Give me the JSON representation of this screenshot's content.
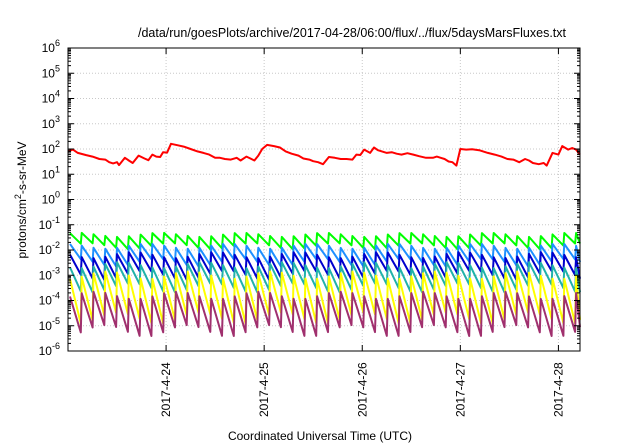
{
  "chart_data": {
    "type": "line",
    "title": "/data/run/goesPlots/archive/2017-04-28/06:00/flux/../flux/5daysMarsFluxes.txt",
    "xlabel": "Coordinated Universal Time (UTC)",
    "ylabel_parts": [
      "protons/cm",
      "2",
      "-s-sr-MeV"
    ],
    "y_scale": "log",
    "ylim": [
      1e-06,
      1000000.0
    ],
    "y_ticks": [
      {
        "base": "10",
        "exp": "-6",
        "value": -6
      },
      {
        "base": "10",
        "exp": "-5",
        "value": -5
      },
      {
        "base": "10",
        "exp": "-4",
        "value": -4
      },
      {
        "base": "10",
        "exp": "-3",
        "value": -3
      },
      {
        "base": "10",
        "exp": "-2",
        "value": -2
      },
      {
        "base": "10",
        "exp": "-1",
        "value": -1
      },
      {
        "base": "10",
        "exp": "0",
        "value": 0
      },
      {
        "base": "10",
        "exp": "1",
        "value": 1
      },
      {
        "base": "10",
        "exp": "2",
        "value": 2
      },
      {
        "base": "10",
        "exp": "3",
        "value": 3
      },
      {
        "base": "10",
        "exp": "4",
        "value": 4
      },
      {
        "base": "10",
        "exp": "5",
        "value": 5
      },
      {
        "base": "10",
        "exp": "6",
        "value": 6
      }
    ],
    "x_range_days": [
      0,
      5.22
    ],
    "x_ticks": [
      {
        "label": "2017-4-24",
        "day": 1
      },
      {
        "label": "2017-4-25",
        "day": 2
      },
      {
        "label": "2017-4-26",
        "day": 3
      },
      {
        "label": "2017-4-27",
        "day": 4
      },
      {
        "label": "2017-4-28",
        "day": 5
      }
    ],
    "grid": true,
    "series": [
      {
        "color": "#ff0000",
        "sawtooth": false,
        "points": [
          [
            0.0,
            80
          ],
          [
            0.05,
            95
          ],
          [
            0.1,
            70
          ],
          [
            0.18,
            58
          ],
          [
            0.25,
            50
          ],
          [
            0.32,
            40
          ],
          [
            0.38,
            38
          ],
          [
            0.42,
            30
          ],
          [
            0.46,
            27
          ],
          [
            0.5,
            30
          ],
          [
            0.52,
            23
          ],
          [
            0.58,
            45
          ],
          [
            0.62,
            35
          ],
          [
            0.66,
            28
          ],
          [
            0.72,
            55
          ],
          [
            0.78,
            42
          ],
          [
            0.82,
            36
          ],
          [
            0.86,
            60
          ],
          [
            0.9,
            50
          ],
          [
            0.94,
            48
          ],
          [
            0.97,
            75
          ],
          [
            1.01,
            72
          ],
          [
            1.05,
            160
          ],
          [
            1.12,
            140
          ],
          [
            1.18,
            125
          ],
          [
            1.25,
            100
          ],
          [
            1.32,
            80
          ],
          [
            1.38,
            70
          ],
          [
            1.44,
            60
          ],
          [
            1.5,
            45
          ],
          [
            1.55,
            45
          ],
          [
            1.6,
            40
          ],
          [
            1.66,
            38
          ],
          [
            1.72,
            45
          ],
          [
            1.76,
            35
          ],
          [
            1.82,
            50
          ],
          [
            1.86,
            42
          ],
          [
            1.9,
            35
          ],
          [
            1.94,
            55
          ],
          [
            1.98,
            100
          ],
          [
            2.03,
            145
          ],
          [
            2.1,
            130
          ],
          [
            2.16,
            115
          ],
          [
            2.22,
            80
          ],
          [
            2.28,
            65
          ],
          [
            2.35,
            55
          ],
          [
            2.4,
            42
          ],
          [
            2.46,
            38
          ],
          [
            2.5,
            33
          ],
          [
            2.55,
            30
          ],
          [
            2.6,
            25
          ],
          [
            2.66,
            48
          ],
          [
            2.72,
            45
          ],
          [
            2.78,
            40
          ],
          [
            2.84,
            40
          ],
          [
            2.9,
            38
          ],
          [
            2.94,
            60
          ],
          [
            2.98,
            58
          ],
          [
            3.02,
            95
          ],
          [
            3.08,
            70
          ],
          [
            3.12,
            115
          ],
          [
            3.16,
            90
          ],
          [
            3.2,
            80
          ],
          [
            3.25,
            70
          ],
          [
            3.3,
            75
          ],
          [
            3.35,
            65
          ],
          [
            3.4,
            60
          ],
          [
            3.46,
            68
          ],
          [
            3.52,
            60
          ],
          [
            3.58,
            52
          ],
          [
            3.65,
            45
          ],
          [
            3.72,
            45
          ],
          [
            3.76,
            50
          ],
          [
            3.8,
            45
          ],
          [
            3.84,
            40
          ],
          [
            3.88,
            32
          ],
          [
            3.92,
            30
          ],
          [
            3.96,
            22
          ],
          [
            4.0,
            100
          ],
          [
            4.06,
            95
          ],
          [
            4.12,
            98
          ],
          [
            4.2,
            88
          ],
          [
            4.28,
            70
          ],
          [
            4.35,
            60
          ],
          [
            4.42,
            50
          ],
          [
            4.48,
            40
          ],
          [
            4.54,
            38
          ],
          [
            4.6,
            30
          ],
          [
            4.66,
            40
          ],
          [
            4.7,
            35
          ],
          [
            4.74,
            28
          ],
          [
            4.8,
            25
          ],
          [
            4.85,
            28
          ],
          [
            4.88,
            22
          ],
          [
            4.94,
            70
          ],
          [
            5.0,
            60
          ],
          [
            5.04,
            130
          ],
          [
            5.1,
            95
          ],
          [
            5.14,
            110
          ],
          [
            5.18,
            95
          ],
          [
            5.22,
            60
          ]
        ]
      },
      {
        "color": "#00ff00",
        "sawtooth": true,
        "hi": -1.4,
        "lo": -1.85,
        "amp_mod": 0.08
      },
      {
        "color": "#1e90ff",
        "sawtooth": true,
        "hi": -1.85,
        "lo": -2.5,
        "amp_mod": 0.1
      },
      {
        "color": "#0000cd",
        "sawtooth": true,
        "hi": -2.2,
        "lo": -3.0,
        "amp_mod": 0.12
      },
      {
        "color": "#20b2aa",
        "sawtooth": true,
        "hi": -2.6,
        "lo": -3.5,
        "amp_mod": 0.12
      },
      {
        "color": "#ffff00",
        "sawtooth": true,
        "hi": -3.0,
        "lo": -4.7,
        "amp_mod": 0.15
      },
      {
        "color": "#a0306e",
        "sawtooth": true,
        "hi": -3.8,
        "lo": -5.2,
        "amp_mod": 0.15
      }
    ],
    "sawtooth_period_days": 0.12,
    "sawtooth_start_day": 0.02
  }
}
